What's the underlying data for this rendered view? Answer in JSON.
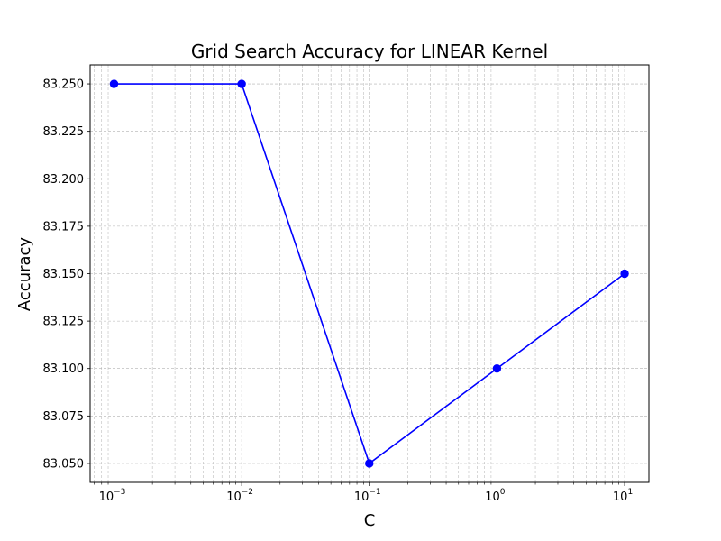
{
  "chart_data": {
    "type": "line",
    "title": "Grid Search Accuracy for LINEAR Kernel",
    "xlabel": "C",
    "ylabel": "Accuracy",
    "xscale": "log",
    "x": [
      0.001,
      0.01,
      0.1,
      1,
      10
    ],
    "series": [
      {
        "values": [
          83.25,
          83.25,
          83.05,
          83.1,
          83.15
        ],
        "color": "#0000ff",
        "marker": "circle"
      }
    ],
    "xticks": [
      {
        "value": 0.001,
        "base": "10",
        "exp": "−3"
      },
      {
        "value": 0.01,
        "base": "10",
        "exp": "−2"
      },
      {
        "value": 0.1,
        "base": "10",
        "exp": "−1"
      },
      {
        "value": 1,
        "base": "10",
        "exp": "0"
      },
      {
        "value": 10,
        "base": "10",
        "exp": "1"
      }
    ],
    "yticks": [
      {
        "value": 83.05,
        "label": "83.050"
      },
      {
        "value": 83.075,
        "label": "83.075"
      },
      {
        "value": 83.1,
        "label": "83.100"
      },
      {
        "value": 83.125,
        "label": "83.125"
      },
      {
        "value": 83.15,
        "label": "83.150"
      },
      {
        "value": 83.175,
        "label": "83.175"
      },
      {
        "value": 83.2,
        "label": "83.200"
      },
      {
        "value": 83.225,
        "label": "83.225"
      },
      {
        "value": 83.25,
        "label": "83.250"
      }
    ],
    "xlim": [
      0.00065,
      15.5
    ],
    "ylim": [
      83.04,
      83.26
    ],
    "grid": true,
    "grid_style": "dashed",
    "grid_color": "#b0b0b0"
  }
}
